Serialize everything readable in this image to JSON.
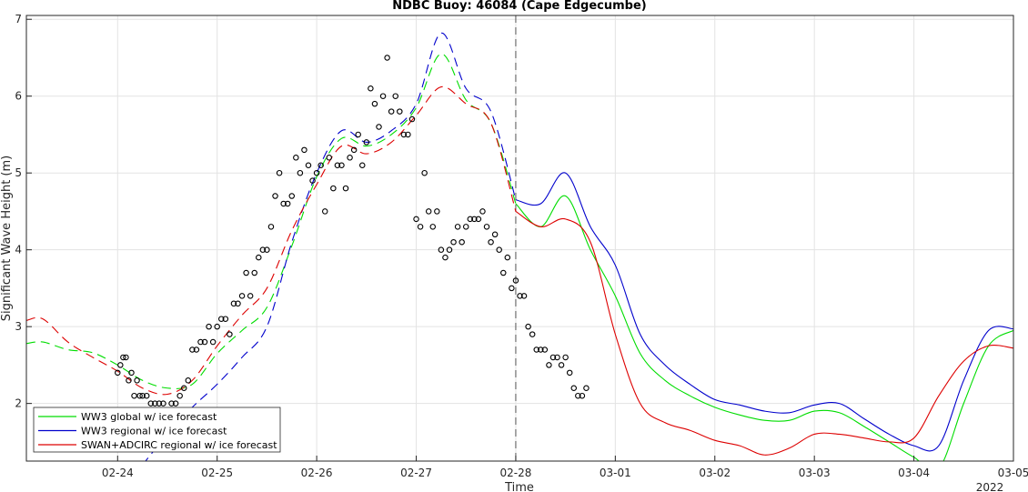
{
  "chart_data": {
    "type": "line",
    "title": "NDBC Buoy: 46084 (Cape Edgecumbe)",
    "xlabel": "Time",
    "ylabel": "Significant Wave Height (m)",
    "year_label": "2022",
    "x_unit": "date (Feb-Mar 2022)",
    "xlim": [
      "2022-02-23 02:00",
      "2022-03-05 00:00"
    ],
    "ylim": [
      1.25,
      7.05
    ],
    "x_ticks": [
      {
        "x": "2022-02-24",
        "label": "02-24"
      },
      {
        "x": "2022-02-25",
        "label": "02-25"
      },
      {
        "x": "2022-02-26",
        "label": "02-26"
      },
      {
        "x": "2022-02-27",
        "label": "02-27"
      },
      {
        "x": "2022-02-28",
        "label": "02-28"
      },
      {
        "x": "2022-03-01",
        "label": "03-01"
      },
      {
        "x": "2022-03-02",
        "label": "03-02"
      },
      {
        "x": "2022-03-03",
        "label": "03-03"
      },
      {
        "x": "2022-03-04",
        "label": "03-04"
      },
      {
        "x": "2022-03-05",
        "label": "03-05"
      }
    ],
    "y_ticks": [
      2,
      3,
      4,
      5,
      6,
      7
    ],
    "grid": true,
    "forecast_start": "2022-02-28 00:00",
    "legend": {
      "placement": "bottom-left",
      "entries": [
        {
          "label": "WW3 global w/ ice forecast",
          "color": "#00dd00"
        },
        {
          "label": "WW3 regional w/ ice forecast",
          "color": "#0000cc"
        },
        {
          "label": "SWAN+ADCIRC regional w/ ice forecast",
          "color": "#dd0000"
        }
      ]
    },
    "series": [
      {
        "name": "WW3 global w/ ice forecast",
        "color": "#00dd00",
        "points": [
          [
            "2022-02-23 02:00",
            2.78
          ],
          [
            "2022-02-23 06:00",
            2.8
          ],
          [
            "2022-02-23 12:00",
            2.7
          ],
          [
            "2022-02-23 18:00",
            2.66
          ],
          [
            "2022-02-24 00:00",
            2.5
          ],
          [
            "2022-02-24 06:00",
            2.3
          ],
          [
            "2022-02-24 12:00",
            2.2
          ],
          [
            "2022-02-24 18:00",
            2.25
          ],
          [
            "2022-02-25 00:00",
            2.65
          ],
          [
            "2022-02-25 06:00",
            2.95
          ],
          [
            "2022-02-25 12:00",
            3.25
          ],
          [
            "2022-02-25 18:00",
            4.05
          ],
          [
            "2022-02-26 00:00",
            4.95
          ],
          [
            "2022-02-26 06:00",
            5.45
          ],
          [
            "2022-02-26 12:00",
            5.35
          ],
          [
            "2022-02-26 18:00",
            5.5
          ],
          [
            "2022-02-27 00:00",
            5.85
          ],
          [
            "2022-02-27 06:00",
            6.55
          ],
          [
            "2022-02-27 12:00",
            5.95
          ],
          [
            "2022-02-27 18:00",
            5.65
          ],
          [
            "2022-02-28 00:00",
            4.6
          ],
          [
            "2022-02-28 06:00",
            4.3
          ],
          [
            "2022-02-28 12:00",
            4.7
          ],
          [
            "2022-02-28 18:00",
            4.0
          ],
          [
            "2022-03-01 00:00",
            3.4
          ],
          [
            "2022-03-01 06:00",
            2.65
          ],
          [
            "2022-03-01 12:00",
            2.3
          ],
          [
            "2022-03-01 18:00",
            2.1
          ],
          [
            "2022-03-02 00:00",
            1.95
          ],
          [
            "2022-03-02 06:00",
            1.85
          ],
          [
            "2022-03-02 12:00",
            1.78
          ],
          [
            "2022-03-02 18:00",
            1.78
          ],
          [
            "2022-03-03 00:00",
            1.9
          ],
          [
            "2022-03-03 06:00",
            1.88
          ],
          [
            "2022-03-03 12:00",
            1.7
          ],
          [
            "2022-03-03 18:00",
            1.5
          ],
          [
            "2022-03-04 00:00",
            1.3
          ],
          [
            "2022-03-04 06:00",
            1.15
          ],
          [
            "2022-03-04 12:00",
            2.0
          ],
          [
            "2022-03-04 18:00",
            2.75
          ],
          [
            "2022-03-05 00:00",
            2.95
          ]
        ]
      },
      {
        "name": "WW3 regional w/ ice forecast",
        "color": "#0000cc",
        "points": [
          [
            "2022-02-24 06:00",
            1.2
          ],
          [
            "2022-02-24 12:00",
            1.6
          ],
          [
            "2022-02-24 18:00",
            1.95
          ],
          [
            "2022-02-25 00:00",
            2.25
          ],
          [
            "2022-02-25 06:00",
            2.6
          ],
          [
            "2022-02-25 12:00",
            3.0
          ],
          [
            "2022-02-25 18:00",
            4.1
          ],
          [
            "2022-02-26 00:00",
            5.0
          ],
          [
            "2022-02-26 06:00",
            5.55
          ],
          [
            "2022-02-26 12:00",
            5.4
          ],
          [
            "2022-02-26 18:00",
            5.55
          ],
          [
            "2022-02-27 00:00",
            5.9
          ],
          [
            "2022-02-27 06:00",
            6.82
          ],
          [
            "2022-02-27 12:00",
            6.1
          ],
          [
            "2022-02-27 18:00",
            5.8
          ],
          [
            "2022-02-28 00:00",
            4.65
          ],
          [
            "2022-02-28 06:00",
            4.6
          ],
          [
            "2022-02-28 12:00",
            5.0
          ],
          [
            "2022-02-28 18:00",
            4.3
          ],
          [
            "2022-03-01 00:00",
            3.8
          ],
          [
            "2022-03-01 06:00",
            2.9
          ],
          [
            "2022-03-01 12:00",
            2.5
          ],
          [
            "2022-03-01 18:00",
            2.25
          ],
          [
            "2022-03-02 00:00",
            2.05
          ],
          [
            "2022-03-02 06:00",
            1.98
          ],
          [
            "2022-03-02 12:00",
            1.9
          ],
          [
            "2022-03-02 18:00",
            1.88
          ],
          [
            "2022-03-03 00:00",
            1.98
          ],
          [
            "2022-03-03 06:00",
            2.0
          ],
          [
            "2022-03-03 12:00",
            1.8
          ],
          [
            "2022-03-03 18:00",
            1.6
          ],
          [
            "2022-03-04 00:00",
            1.45
          ],
          [
            "2022-03-04 06:00",
            1.45
          ],
          [
            "2022-03-04 12:00",
            2.3
          ],
          [
            "2022-03-04 18:00",
            2.95
          ],
          [
            "2022-03-05 00:00",
            2.97
          ]
        ]
      },
      {
        "name": "SWAN+ADCIRC regional w/ ice forecast",
        "color": "#dd0000",
        "points": [
          [
            "2022-02-23 02:00",
            3.08
          ],
          [
            "2022-02-23 06:00",
            3.1
          ],
          [
            "2022-02-23 12:00",
            2.8
          ],
          [
            "2022-02-23 18:00",
            2.6
          ],
          [
            "2022-02-24 00:00",
            2.42
          ],
          [
            "2022-02-24 06:00",
            2.2
          ],
          [
            "2022-02-24 12:00",
            2.12
          ],
          [
            "2022-02-24 18:00",
            2.3
          ],
          [
            "2022-02-25 00:00",
            2.75
          ],
          [
            "2022-02-25 06:00",
            3.15
          ],
          [
            "2022-02-25 12:00",
            3.5
          ],
          [
            "2022-02-25 18:00",
            4.25
          ],
          [
            "2022-02-26 00:00",
            4.85
          ],
          [
            "2022-02-26 06:00",
            5.35
          ],
          [
            "2022-02-26 12:00",
            5.25
          ],
          [
            "2022-02-26 18:00",
            5.4
          ],
          [
            "2022-02-27 00:00",
            5.75
          ],
          [
            "2022-02-27 06:00",
            6.12
          ],
          [
            "2022-02-27 12:00",
            5.9
          ],
          [
            "2022-02-27 18:00",
            5.65
          ],
          [
            "2022-02-28 00:00",
            4.5
          ],
          [
            "2022-02-28 06:00",
            4.3
          ],
          [
            "2022-02-28 12:00",
            4.4
          ],
          [
            "2022-02-28 18:00",
            4.1
          ],
          [
            "2022-03-01 00:00",
            2.9
          ],
          [
            "2022-03-01 06:00",
            2.0
          ],
          [
            "2022-03-01 12:00",
            1.75
          ],
          [
            "2022-03-01 18:00",
            1.65
          ],
          [
            "2022-03-02 00:00",
            1.52
          ],
          [
            "2022-03-02 06:00",
            1.45
          ],
          [
            "2022-03-02 12:00",
            1.33
          ],
          [
            "2022-03-02 18:00",
            1.42
          ],
          [
            "2022-03-03 00:00",
            1.6
          ],
          [
            "2022-03-03 06:00",
            1.6
          ],
          [
            "2022-03-03 12:00",
            1.55
          ],
          [
            "2022-03-03 18:00",
            1.5
          ],
          [
            "2022-03-04 00:00",
            1.55
          ],
          [
            "2022-03-04 06:00",
            2.1
          ],
          [
            "2022-03-04 12:00",
            2.55
          ],
          [
            "2022-03-04 18:00",
            2.75
          ],
          [
            "2022-03-05 00:00",
            2.72
          ]
        ]
      },
      {
        "name": "Observed",
        "color": "#000000",
        "marker": "circle",
        "points": [
          [
            "2022-02-24 00:00",
            2.4
          ],
          [
            "2022-02-24 00:40",
            2.5
          ],
          [
            "2022-02-24 01:20",
            2.6
          ],
          [
            "2022-02-24 02:00",
            2.6
          ],
          [
            "2022-02-24 02:40",
            2.3
          ],
          [
            "2022-02-24 03:20",
            2.4
          ],
          [
            "2022-02-24 04:00",
            2.1
          ],
          [
            "2022-02-24 04:40",
            2.3
          ],
          [
            "2022-02-24 05:20",
            2.1
          ],
          [
            "2022-02-24 06:00",
            2.1
          ],
          [
            "2022-02-24 07:00",
            2.1
          ],
          [
            "2022-02-24 08:00",
            2.0
          ],
          [
            "2022-02-24 09:00",
            2.0
          ],
          [
            "2022-02-24 10:00",
            2.0
          ],
          [
            "2022-02-24 11:00",
            2.0
          ],
          [
            "2022-02-24 13:00",
            2.0
          ],
          [
            "2022-02-24 14:00",
            2.0
          ],
          [
            "2022-02-24 15:00",
            2.1
          ],
          [
            "2022-02-24 16:00",
            2.2
          ],
          [
            "2022-02-24 17:00",
            2.3
          ],
          [
            "2022-02-24 18:00",
            2.7
          ],
          [
            "2022-02-24 19:00",
            2.7
          ],
          [
            "2022-02-24 20:00",
            2.8
          ],
          [
            "2022-02-24 21:00",
            2.8
          ],
          [
            "2022-02-24 22:00",
            3.0
          ],
          [
            "2022-02-24 23:00",
            2.8
          ],
          [
            "2022-02-25 00:00",
            3.0
          ],
          [
            "2022-02-25 01:00",
            3.1
          ],
          [
            "2022-02-25 02:00",
            3.1
          ],
          [
            "2022-02-25 03:00",
            2.9
          ],
          [
            "2022-02-25 04:00",
            3.3
          ],
          [
            "2022-02-25 05:00",
            3.3
          ],
          [
            "2022-02-25 06:00",
            3.4
          ],
          [
            "2022-02-25 07:00",
            3.7
          ],
          [
            "2022-02-25 08:00",
            3.4
          ],
          [
            "2022-02-25 09:00",
            3.7
          ],
          [
            "2022-02-25 10:00",
            3.9
          ],
          [
            "2022-02-25 11:00",
            4.0
          ],
          [
            "2022-02-25 12:00",
            4.0
          ],
          [
            "2022-02-25 13:00",
            4.3
          ],
          [
            "2022-02-25 14:00",
            4.7
          ],
          [
            "2022-02-25 15:00",
            5.0
          ],
          [
            "2022-02-25 16:00",
            4.6
          ],
          [
            "2022-02-25 17:00",
            4.6
          ],
          [
            "2022-02-25 18:00",
            4.7
          ],
          [
            "2022-02-25 19:00",
            5.2
          ],
          [
            "2022-02-25 20:00",
            5.0
          ],
          [
            "2022-02-25 21:00",
            5.3
          ],
          [
            "2022-02-25 22:00",
            5.1
          ],
          [
            "2022-02-25 23:00",
            4.9
          ],
          [
            "2022-02-26 00:00",
            5.0
          ],
          [
            "2022-02-26 01:00",
            5.1
          ],
          [
            "2022-02-26 02:00",
            4.5
          ],
          [
            "2022-02-26 03:00",
            5.2
          ],
          [
            "2022-02-26 04:00",
            4.8
          ],
          [
            "2022-02-26 05:00",
            5.1
          ],
          [
            "2022-02-26 06:00",
            5.1
          ],
          [
            "2022-02-26 07:00",
            4.8
          ],
          [
            "2022-02-26 08:00",
            5.2
          ],
          [
            "2022-02-26 09:00",
            5.3
          ],
          [
            "2022-02-26 10:00",
            5.5
          ],
          [
            "2022-02-26 11:00",
            5.1
          ],
          [
            "2022-02-26 12:00",
            5.4
          ],
          [
            "2022-02-26 13:00",
            6.1
          ],
          [
            "2022-02-26 14:00",
            5.9
          ],
          [
            "2022-02-26 15:00",
            5.6
          ],
          [
            "2022-02-26 16:00",
            6.0
          ],
          [
            "2022-02-26 17:00",
            6.5
          ],
          [
            "2022-02-26 18:00",
            5.8
          ],
          [
            "2022-02-26 19:00",
            6.0
          ],
          [
            "2022-02-26 20:00",
            5.8
          ],
          [
            "2022-02-26 21:00",
            5.5
          ],
          [
            "2022-02-26 22:00",
            5.5
          ],
          [
            "2022-02-26 23:00",
            5.7
          ],
          [
            "2022-02-27 00:00",
            4.4
          ],
          [
            "2022-02-27 01:00",
            4.3
          ],
          [
            "2022-02-27 02:00",
            5.0
          ],
          [
            "2022-02-27 03:00",
            4.5
          ],
          [
            "2022-02-27 04:00",
            4.3
          ],
          [
            "2022-02-27 05:00",
            4.5
          ],
          [
            "2022-02-27 06:00",
            4.0
          ],
          [
            "2022-02-27 07:00",
            3.9
          ],
          [
            "2022-02-27 08:00",
            4.0
          ],
          [
            "2022-02-27 09:00",
            4.1
          ],
          [
            "2022-02-27 10:00",
            4.3
          ],
          [
            "2022-02-27 11:00",
            4.1
          ],
          [
            "2022-02-27 12:00",
            4.3
          ],
          [
            "2022-02-27 13:00",
            4.4
          ],
          [
            "2022-02-27 14:00",
            4.4
          ],
          [
            "2022-02-27 15:00",
            4.4
          ],
          [
            "2022-02-27 16:00",
            4.5
          ],
          [
            "2022-02-27 17:00",
            4.3
          ],
          [
            "2022-02-27 18:00",
            4.1
          ],
          [
            "2022-02-27 19:00",
            4.2
          ],
          [
            "2022-02-27 20:00",
            4.0
          ],
          [
            "2022-02-27 21:00",
            3.7
          ],
          [
            "2022-02-27 22:00",
            3.9
          ],
          [
            "2022-02-27 23:00",
            3.5
          ],
          [
            "2022-02-28 00:00",
            3.6
          ],
          [
            "2022-02-28 01:00",
            3.4
          ],
          [
            "2022-02-28 02:00",
            3.4
          ],
          [
            "2022-02-28 03:00",
            3.0
          ],
          [
            "2022-02-28 04:00",
            2.9
          ],
          [
            "2022-02-28 05:00",
            2.7
          ],
          [
            "2022-02-28 06:00",
            2.7
          ],
          [
            "2022-02-28 07:00",
            2.7
          ],
          [
            "2022-02-28 08:00",
            2.5
          ],
          [
            "2022-02-28 09:00",
            2.6
          ],
          [
            "2022-02-28 10:00",
            2.6
          ],
          [
            "2022-02-28 11:00",
            2.5
          ],
          [
            "2022-02-28 12:00",
            2.6
          ],
          [
            "2022-02-28 13:00",
            2.4
          ],
          [
            "2022-02-28 14:00",
            2.2
          ],
          [
            "2022-02-28 15:00",
            2.1
          ],
          [
            "2022-02-28 16:00",
            2.1
          ],
          [
            "2022-02-28 17:00",
            2.2
          ]
        ]
      }
    ]
  }
}
